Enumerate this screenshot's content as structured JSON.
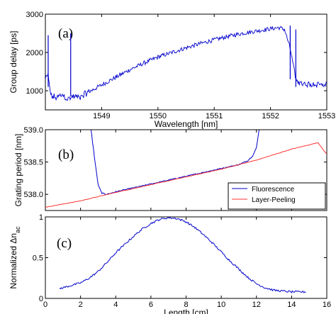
{
  "chart_data": [
    {
      "panel": "(a)",
      "type": "line",
      "xlabel": "Wavelength [nm]",
      "ylabel": "Group delay [ps]",
      "xlim": [
        1548.0,
        1553.0
      ],
      "ylim": [
        500,
        3000
      ],
      "xticks": [
        "1549",
        "1550",
        "1551",
        "1552",
        "1553"
      ],
      "yticks": [
        "1000",
        "2000",
        "3000"
      ],
      "series": [
        {
          "color": "#0000cc",
          "x": [
            1548.0,
            1548.05,
            1548.1,
            1548.2,
            1548.3,
            1548.4,
            1548.5,
            1548.6,
            1548.75,
            1549.0,
            1549.25,
            1549.5,
            1549.75,
            1550.0,
            1550.25,
            1550.5,
            1550.75,
            1551.0,
            1551.25,
            1551.5,
            1551.75,
            1552.0,
            1552.15,
            1552.25,
            1552.35,
            1552.45,
            1552.6,
            1552.8,
            1553.0
          ],
          "y": [
            1300,
            1400,
            850,
            820,
            900,
            780,
            850,
            820,
            950,
            1150,
            1350,
            1550,
            1720,
            1880,
            2000,
            2120,
            2230,
            2330,
            2420,
            2500,
            2560,
            2620,
            2650,
            2600,
            2100,
            1300,
            1150,
            1180,
            1150
          ]
        }
      ],
      "spikes": [
        {
          "x": 1548.05,
          "y_top": 2450,
          "y_base": 1100
        },
        {
          "x": 1548.45,
          "y_top": 2500,
          "y_base": 850
        },
        {
          "x": 1552.35,
          "y_top": 2700,
          "y_base": 1300
        },
        {
          "x": 1552.45,
          "y_top": 2600,
          "y_base": 1100
        }
      ]
    },
    {
      "panel": "(b)",
      "type": "line",
      "xlabel": "",
      "ylabel": "Grating period [nm]",
      "xlim": [
        0,
        16
      ],
      "ylim": [
        537.75,
        539.0
      ],
      "yticks": [
        "538.0",
        "538.5",
        "539.0"
      ],
      "legend": {
        "position": "lower-right",
        "entries": [
          "Fluorescence",
          "Layer-Peeling"
        ]
      },
      "series": [
        {
          "name": "Fluorescence",
          "color": "#0000cc",
          "x": [
            2.6,
            2.8,
            3.0,
            3.2,
            3.5,
            4,
            5,
            6,
            7,
            8,
            9,
            10,
            11,
            11.5,
            11.8,
            12.0,
            12.15
          ],
          "y": [
            539.0,
            538.55,
            538.15,
            538.02,
            538.0,
            538.04,
            538.1,
            538.16,
            538.22,
            538.28,
            538.34,
            538.4,
            538.46,
            538.52,
            538.6,
            538.72,
            539.0
          ]
        },
        {
          "name": "Layer-Peeling",
          "color": "#ff3333",
          "x": [
            0,
            2,
            4,
            6,
            8,
            10,
            12,
            14,
            15.5,
            16
          ],
          "y": [
            537.8,
            537.9,
            538.03,
            538.15,
            538.27,
            538.39,
            538.53,
            538.7,
            538.8,
            538.62
          ]
        }
      ]
    },
    {
      "panel": "(c)",
      "type": "line",
      "xlabel": "Length [cm]",
      "ylabel": "Normalized Δn",
      "ylabel_sub": "ac",
      "xlim": [
        0,
        16
      ],
      "ylim": [
        0,
        1
      ],
      "xticks": [
        "0",
        "2",
        "4",
        "6",
        "8",
        "10",
        "12",
        "14",
        "16"
      ],
      "yticks": [
        "0",
        "0.5",
        "1"
      ],
      "series": [
        {
          "color": "#0000cc",
          "x": [
            0.8,
            1.5,
            2.0,
            2.5,
            3.0,
            3.5,
            4.0,
            4.5,
            5.0,
            5.5,
            6.0,
            6.5,
            7.0,
            7.5,
            8.0,
            8.5,
            9.0,
            9.5,
            10.0,
            10.5,
            11.0,
            11.5,
            12.0,
            12.5,
            13.0,
            14.0,
            14.8
          ],
          "y": [
            0.12,
            0.16,
            0.19,
            0.25,
            0.33,
            0.44,
            0.56,
            0.66,
            0.76,
            0.85,
            0.92,
            0.97,
            0.99,
            0.98,
            0.94,
            0.87,
            0.78,
            0.68,
            0.57,
            0.46,
            0.36,
            0.26,
            0.18,
            0.13,
            0.1,
            0.08,
            0.08
          ]
        }
      ]
    }
  ]
}
